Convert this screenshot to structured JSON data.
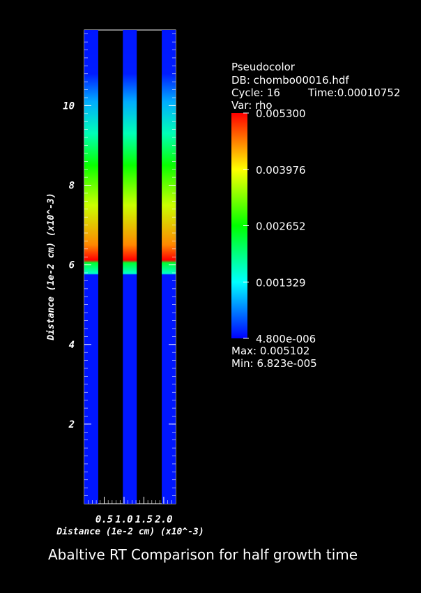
{
  "chart_data": {
    "type": "heatmap",
    "title": "Abaltive RT Comparison for half growth time",
    "xlabel": "Distance (1e-2 cm) (x10^-3)",
    "ylabel": "Distance (1e-2 cm) (x10^-3)",
    "x_ticks": [
      "0.5",
      "1.0",
      "1.5",
      "2.0"
    ],
    "y_ticks": [
      "2",
      "4",
      "6",
      "8",
      "10"
    ],
    "ylim": [
      0,
      11.9
    ],
    "xlim": [
      0,
      2.3
    ],
    "columns": [
      {
        "x_range": [
          0,
          0.35
        ]
      },
      {
        "x_range": [
          0.97,
          1.32
        ]
      },
      {
        "x_range": [
          1.95,
          2.3
        ]
      }
    ],
    "profile_rho": [
      {
        "y": 0.0,
        "rho": 0.00012
      },
      {
        "y": 5.75,
        "rho": 0.00012
      },
      {
        "y": 5.78,
        "rho": 0.0016
      },
      {
        "y": 6.05,
        "rho": 0.0024
      },
      {
        "y": 6.12,
        "rho": 0.0053
      },
      {
        "y": 6.5,
        "rho": 0.0046
      },
      {
        "y": 7.5,
        "rho": 0.0037
      },
      {
        "y": 8.5,
        "rho": 0.0027
      },
      {
        "y": 9.3,
        "rho": 0.0017
      },
      {
        "y": 10.1,
        "rho": 0.0009
      },
      {
        "y": 10.8,
        "rho": 0.00015
      },
      {
        "y": 11.9,
        "rho": 0.00012
      }
    ]
  },
  "legend": {
    "plot_type": "Pseudocolor",
    "db": "DB: chombo00016.hdf",
    "cycle": "Cycle: 16",
    "time": "Time:0.00010752",
    "var": "Var: rho",
    "colorbar_labels": [
      "0.005300",
      "0.003976",
      "0.002652",
      "0.001329",
      "4.800e-006"
    ],
    "max": "Max:  0.005102",
    "min": "Min:  6.823e-005",
    "colormap": [
      "#0000ff",
      "#00ffff",
      "#00ff00",
      "#ffff00",
      "#ff0000"
    ]
  }
}
